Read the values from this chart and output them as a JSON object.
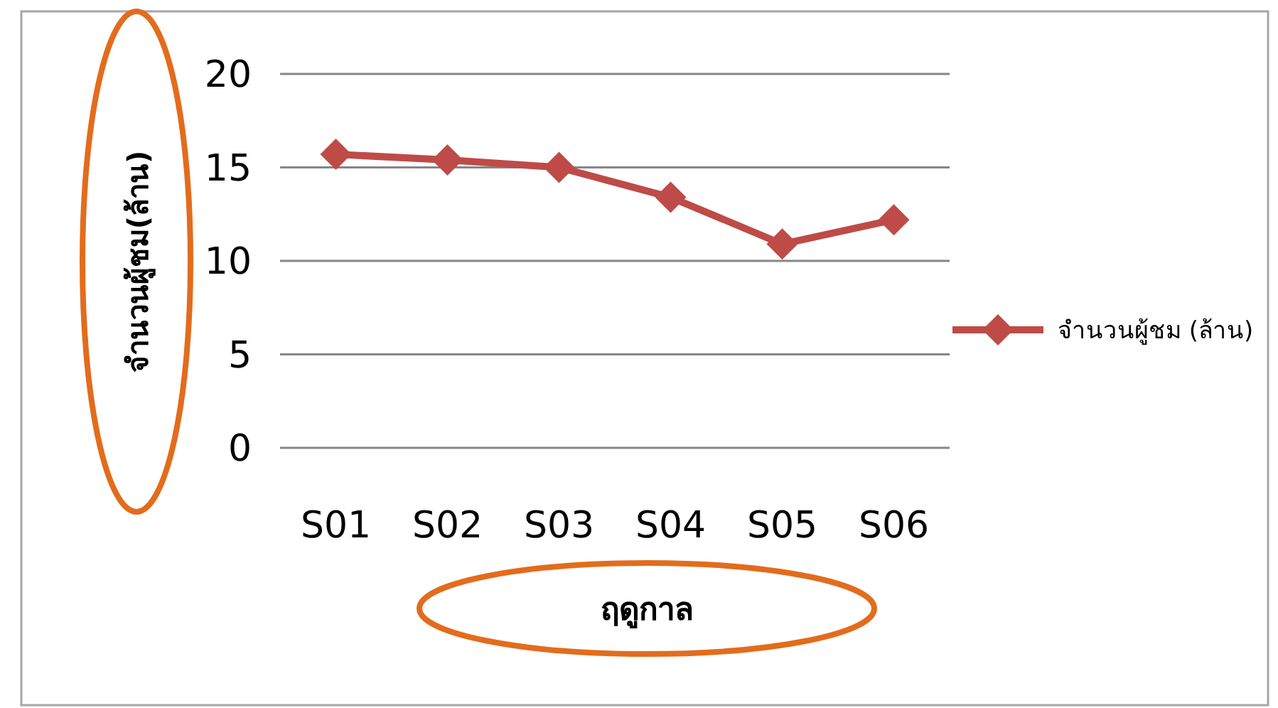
{
  "chart_data": {
    "type": "line",
    "xlabel": "ฤดูกาล",
    "ylabel": "จำนวนผู้ชม(ล้าน)",
    "categories": [
      "S01",
      "S02",
      "S03",
      "S04",
      "S05",
      "S06"
    ],
    "series": [
      {
        "name": "จำนวนผู้ชม (ล้าน)",
        "color": "#be4b48",
        "values": [
          15.7,
          15.4,
          15.0,
          13.4,
          10.9,
          12.2
        ]
      }
    ],
    "ylim": [
      0,
      20
    ],
    "yticks": [
      0,
      5,
      10,
      15,
      20
    ],
    "grid": "y",
    "legend": "right",
    "marker": "diamond",
    "line_style": "solid"
  }
}
